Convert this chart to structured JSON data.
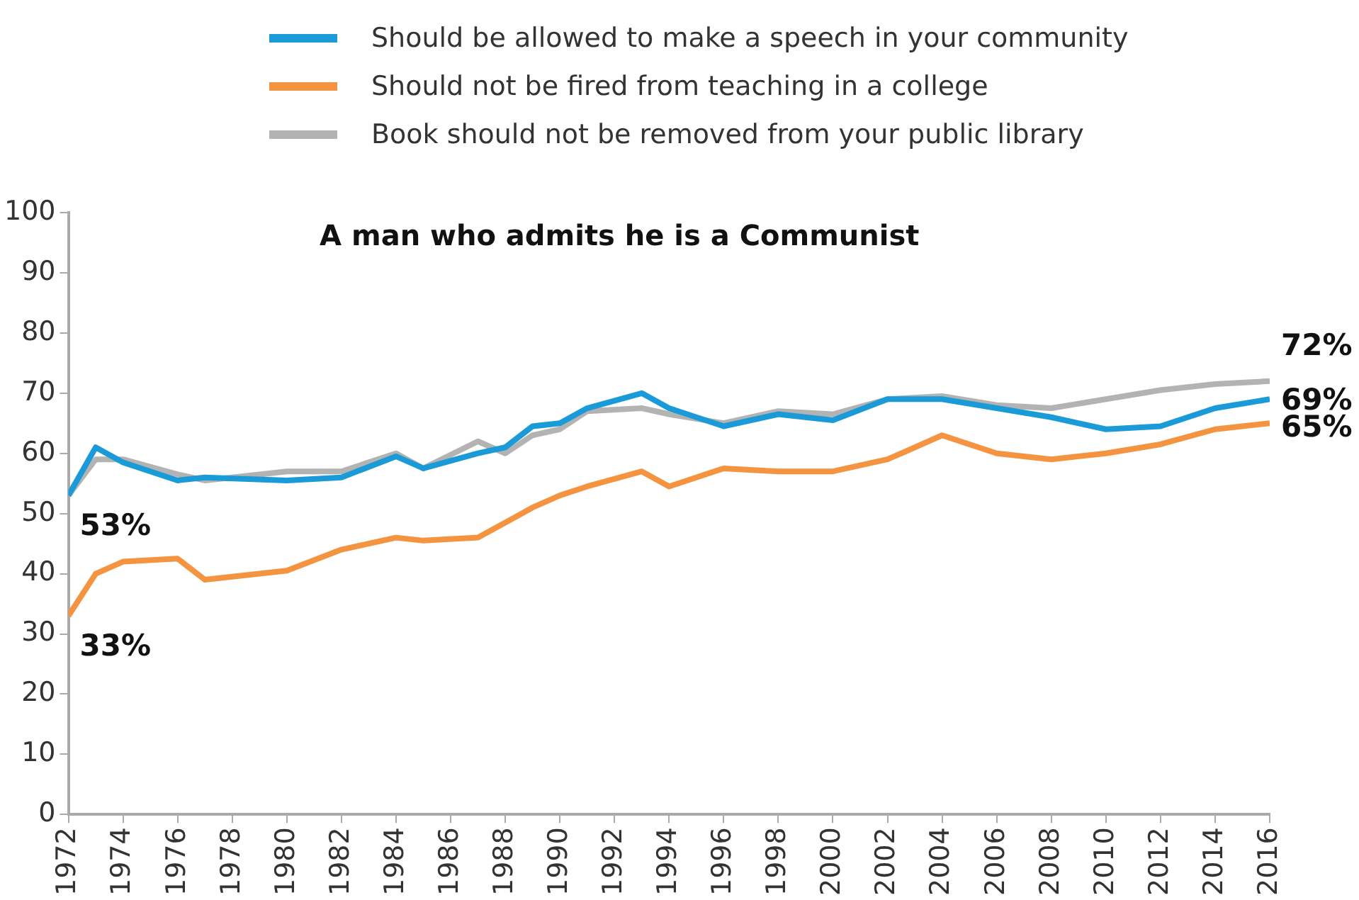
{
  "chart_data": {
    "type": "line",
    "title": "A man who admits he is a Communist",
    "x": [
      1972,
      1973,
      1974,
      1976,
      1977,
      1980,
      1982,
      1984,
      1985,
      1987,
      1988,
      1989,
      1990,
      1991,
      1993,
      1994,
      1996,
      1998,
      2000,
      2002,
      2004,
      2006,
      2008,
      2010,
      2012,
      2014,
      2016
    ],
    "series": [
      {
        "name": "Should be allowed to make a speech in your community",
        "color": "#1a9bd7",
        "values": [
          53,
          61,
          58.5,
          55.5,
          56,
          55.5,
          56,
          59.5,
          57.5,
          60,
          61,
          64.5,
          65,
          67.5,
          70,
          67.5,
          64.5,
          66.5,
          65.5,
          69,
          69,
          67.5,
          66,
          64,
          64.5,
          67.5,
          69
        ],
        "value_labels": [
          "53%",
          null,
          null,
          null,
          null,
          null,
          null,
          null,
          null,
          null,
          null,
          null,
          null,
          null,
          null,
          null,
          null,
          null,
          null,
          null,
          null,
          null,
          null,
          null,
          null,
          null,
          "69%"
        ]
      },
      {
        "name": "Should not be fired from teaching in a college",
        "color": "#f59440",
        "values": [
          33,
          40,
          42,
          42.5,
          39,
          40.5,
          44,
          46,
          45.5,
          46,
          48.5,
          51,
          53,
          54.5,
          57,
          54.5,
          57.5,
          57,
          57,
          59,
          63,
          60,
          59,
          60,
          61.5,
          64,
          65
        ],
        "value_labels": [
          "33%",
          null,
          null,
          null,
          null,
          null,
          null,
          null,
          null,
          null,
          null,
          null,
          null,
          null,
          null,
          null,
          null,
          null,
          null,
          null,
          null,
          null,
          null,
          null,
          null,
          null,
          "65%"
        ]
      },
      {
        "name": "Book should not be removed from your public library",
        "color": "#b3b3b3",
        "values": [
          53,
          59,
          59,
          56.5,
          55.5,
          57,
          57,
          60,
          57.5,
          62,
          60,
          63,
          64,
          67,
          67.5,
          66.5,
          65,
          67,
          66.5,
          69,
          69.5,
          68,
          67.5,
          69,
          70.5,
          71.5,
          72
        ],
        "value_labels": [
          null,
          null,
          null,
          null,
          null,
          null,
          null,
          null,
          null,
          null,
          null,
          null,
          null,
          null,
          null,
          null,
          null,
          null,
          null,
          null,
          null,
          null,
          null,
          null,
          null,
          null,
          "72%"
        ]
      }
    ],
    "xlim": [
      1972,
      2016
    ],
    "xticks": [
      1972,
      1974,
      1976,
      1978,
      1980,
      1982,
      1984,
      1986,
      1988,
      1990,
      1992,
      1994,
      1996,
      1998,
      2000,
      2002,
      2004,
      2006,
      2008,
      2010,
      2012,
      2014,
      2016
    ],
    "ylim": [
      0,
      100
    ],
    "yticks": [
      0,
      10,
      20,
      30,
      40,
      50,
      60,
      70,
      80,
      90,
      100
    ],
    "grid": false,
    "legend": "top",
    "marker": "none",
    "line_style": "solid"
  }
}
